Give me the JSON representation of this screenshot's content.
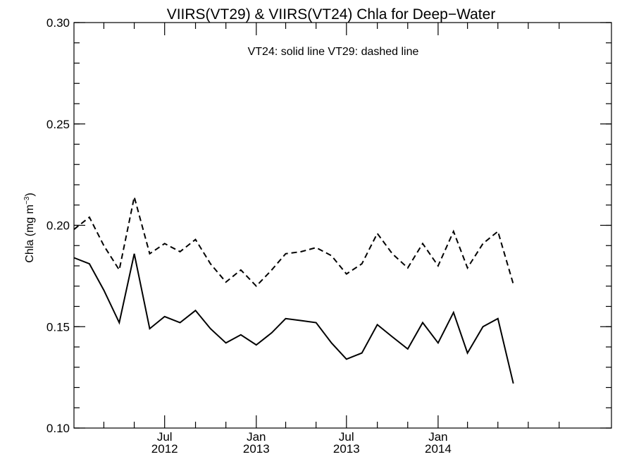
{
  "chart_data": {
    "type": "line",
    "title": "VIIRS(VT29) & VIIRS(VT24)  Chla for Deep−Water",
    "annotation": "VT24: solid line   VT29: dashed line",
    "ylabel_main": "Chla (mg m",
    "ylabel_sup": "−3",
    "ylabel_close": ")",
    "xlim": [
      "2012-01-01",
      "2014-12-15"
    ],
    "ylim": [
      0.1,
      0.3
    ],
    "yticks": [
      {
        "value": 0.1,
        "label": "0.10"
      },
      {
        "value": 0.15,
        "label": "0.15"
      },
      {
        "value": 0.2,
        "label": "0.20"
      },
      {
        "value": 0.25,
        "label": "0.25"
      },
      {
        "value": 0.3,
        "label": "0.30"
      }
    ],
    "y_minor_step": 0.01,
    "xticks": [
      {
        "date": "2012-07-01",
        "month": "Jul",
        "year": "2012"
      },
      {
        "date": "2013-01-01",
        "month": "Jan",
        "year": "2013"
      },
      {
        "date": "2013-07-01",
        "month": "Jul",
        "year": "2013"
      },
      {
        "date": "2014-01-01",
        "month": "Jan",
        "year": "2014"
      }
    ],
    "x_minor_dates": [
      "2012-03-01",
      "2012-05-01",
      "2012-09-01",
      "2012-11-01",
      "2013-03-01",
      "2013-05-01",
      "2013-09-01",
      "2013-11-01",
      "2014-03-01",
      "2014-05-01",
      "2014-07-01",
      "2014-09-01"
    ],
    "series": [
      {
        "style": "solid",
        "points": [
          [
            "2012-01-01",
            0.184
          ],
          [
            "2012-02-01",
            0.181
          ],
          [
            "2012-03-01",
            0.168
          ],
          [
            "2012-04-01",
            0.152
          ],
          [
            "2012-05-01",
            0.186
          ],
          [
            "2012-06-01",
            0.149
          ],
          [
            "2012-07-01",
            0.155
          ],
          [
            "2012-08-01",
            0.152
          ],
          [
            "2012-09-01",
            0.158
          ],
          [
            "2012-10-01",
            0.149
          ],
          [
            "2012-11-01",
            0.142
          ],
          [
            "2012-12-01",
            0.146
          ],
          [
            "2013-01-01",
            0.141
          ],
          [
            "2013-02-01",
            0.147
          ],
          [
            "2013-03-01",
            0.154
          ],
          [
            "2013-04-01",
            0.153
          ],
          [
            "2013-05-01",
            0.152
          ],
          [
            "2013-06-01",
            0.142
          ],
          [
            "2013-07-01",
            0.134
          ],
          [
            "2013-08-01",
            0.137
          ],
          [
            "2013-09-01",
            0.151
          ],
          [
            "2013-10-01",
            0.145
          ],
          [
            "2013-11-01",
            0.139
          ],
          [
            "2013-12-01",
            0.152
          ],
          [
            "2014-01-01",
            0.142
          ],
          [
            "2014-02-01",
            0.157
          ],
          [
            "2014-03-01",
            0.137
          ],
          [
            "2014-04-01",
            0.15
          ],
          [
            "2014-05-01",
            0.154
          ],
          [
            "2014-06-01",
            0.122
          ]
        ]
      },
      {
        "style": "dashed",
        "points": [
          [
            "2012-01-01",
            0.198
          ],
          [
            "2012-02-01",
            0.204
          ],
          [
            "2012-03-01",
            0.19
          ],
          [
            "2012-04-01",
            0.178
          ],
          [
            "2012-05-01",
            0.214
          ],
          [
            "2012-06-01",
            0.186
          ],
          [
            "2012-07-01",
            0.191
          ],
          [
            "2012-08-01",
            0.187
          ],
          [
            "2012-09-01",
            0.193
          ],
          [
            "2012-10-01",
            0.181
          ],
          [
            "2012-11-01",
            0.172
          ],
          [
            "2012-12-01",
            0.178
          ],
          [
            "2013-01-01",
            0.17
          ],
          [
            "2013-02-01",
            0.178
          ],
          [
            "2013-03-01",
            0.186
          ],
          [
            "2013-04-01",
            0.187
          ],
          [
            "2013-05-01",
            0.189
          ],
          [
            "2013-06-01",
            0.185
          ],
          [
            "2013-07-01",
            0.176
          ],
          [
            "2013-08-01",
            0.181
          ],
          [
            "2013-09-01",
            0.196
          ],
          [
            "2013-10-01",
            0.186
          ],
          [
            "2013-11-01",
            0.179
          ],
          [
            "2013-12-01",
            0.191
          ],
          [
            "2014-01-01",
            0.18
          ],
          [
            "2014-02-01",
            0.197
          ],
          [
            "2014-03-01",
            0.179
          ],
          [
            "2014-04-01",
            0.191
          ],
          [
            "2014-05-01",
            0.197
          ],
          [
            "2014-06-01",
            0.171
          ]
        ]
      }
    ]
  }
}
